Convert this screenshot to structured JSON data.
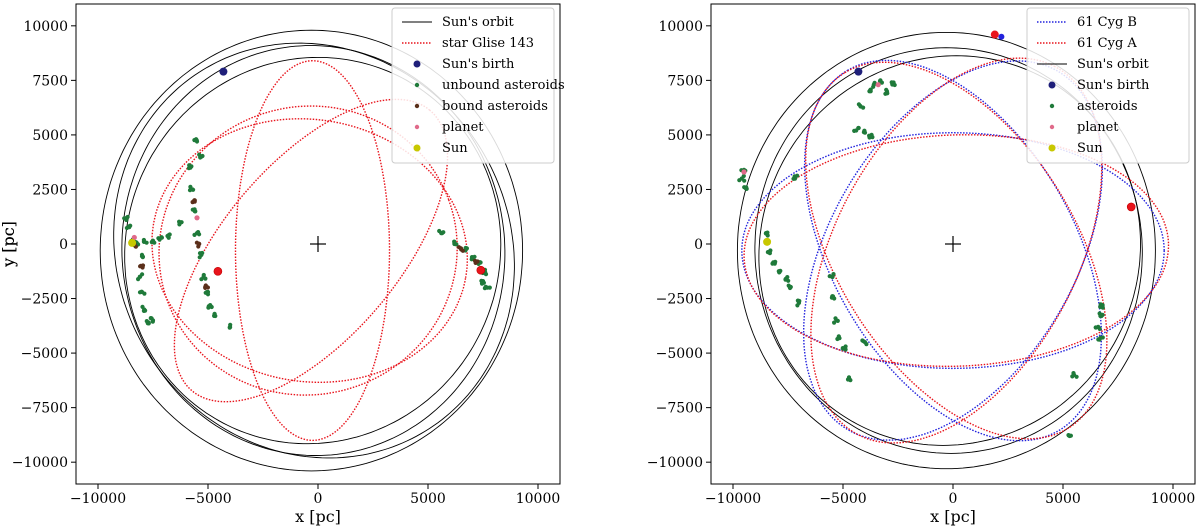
{
  "chart_data": [
    {
      "type": "scatter",
      "xlabel": "x [pc]",
      "ylabel": "y [pc]",
      "xlim": [
        -11000,
        11000
      ],
      "ylim": [
        -11000,
        11000
      ],
      "xticks": [
        -10000,
        -5000,
        0,
        5000,
        10000
      ],
      "yticks": [
        -10000,
        -7500,
        -5000,
        -2500,
        0,
        2500,
        5000,
        7500,
        10000
      ],
      "grid": false,
      "legend_position": "top-right",
      "center_marker": [
        0,
        0
      ],
      "legend": [
        {
          "label": "Sun's orbit",
          "style": "line",
          "color": "#000000"
        },
        {
          "label": "star Glise 143",
          "style": "dotted",
          "color": "#e8141c"
        },
        {
          "label": "Sun's birth",
          "style": "dot",
          "color": "#1f1f7a"
        },
        {
          "label": "unbound asteroids",
          "style": "dot-small",
          "color": "#1f7a3a"
        },
        {
          "label": "bound asteroids",
          "style": "dot-small",
          "color": "#5b2f1a"
        },
        {
          "label": "planet",
          "style": "dot-small",
          "color": "#e06a8a"
        },
        {
          "label": "Sun",
          "style": "dot",
          "color": "#c8c800"
        }
      ],
      "orbits": [
        {
          "label": "Sun's orbit",
          "color": "#000000",
          "dotted": false,
          "loops": [
            [
              -210,
              8700,
              9400,
              5
            ],
            [
              -240,
              8500,
              8900,
              -20
            ],
            [
              -180,
              8900,
              9700,
              30
            ],
            [
              -300,
              9600,
              10100,
              0
            ]
          ]
        },
        {
          "label": "star Glise 143",
          "color": "#e8141c",
          "dotted": true,
          "loops": [
            [
              -250,
              8700,
              3500,
              90
            ],
            [
              -320,
              8400,
              4000,
              50
            ],
            [
              -450,
              6800,
              6600,
              20
            ],
            [
              -380,
              7200,
              6000,
              -10
            ]
          ]
        }
      ],
      "markers": {
        "sun_birth": [
          [
            -4300,
            7900
          ]
        ],
        "sun": [
          [
            -8450,
            50
          ]
        ],
        "planet": [
          [
            -4550,
            -1250
          ],
          [
            7400,
            -1200
          ]
        ]
      },
      "clusters": [
        {
          "label": "unbound asteroids",
          "color": "#1f7a3a",
          "points": [
            [
              -8400,
              200
            ],
            [
              -8200,
              0
            ],
            [
              -8000,
              -500
            ],
            [
              -8100,
              -1500
            ],
            [
              -8000,
              -2200
            ],
            [
              -7900,
              -3000
            ],
            [
              -7700,
              -3600
            ],
            [
              -7500,
              -3500
            ],
            [
              -8600,
              800
            ],
            [
              -8700,
              1200
            ],
            [
              -7900,
              100
            ],
            [
              -7500,
              150
            ],
            [
              -7200,
              200
            ],
            [
              -6800,
              400
            ],
            [
              -5800,
              3500
            ],
            [
              -5700,
              2500
            ],
            [
              -5600,
              1500
            ],
            [
              -5500,
              500
            ],
            [
              -5300,
              -500
            ],
            [
              -5200,
              -1500
            ],
            [
              -5000,
              -2200
            ],
            [
              -4900,
              -2800
            ],
            [
              -4700,
              -3200
            ],
            [
              -5500,
              4700
            ],
            [
              -5300,
              4000
            ],
            [
              -6200,
              1000
            ],
            [
              -4000,
              -3800
            ],
            [
              5600,
              500
            ],
            [
              6200,
              0
            ],
            [
              6700,
              -300
            ],
            [
              7000,
              -600
            ],
            [
              7300,
              -900
            ],
            [
              7600,
              -1300
            ],
            [
              7500,
              -1700
            ],
            [
              7700,
              -2000
            ]
          ]
        },
        {
          "label": "bound asteroids",
          "color": "#5b2f1a",
          "points": [
            [
              -8300,
              -100
            ],
            [
              -8050,
              -1000
            ],
            [
              -5600,
              2000
            ],
            [
              -5400,
              0
            ],
            [
              -5100,
              -1900
            ],
            [
              6500,
              -200
            ],
            [
              7200,
              -800
            ]
          ]
        },
        {
          "label": "planet",
          "color": "#e06a8a",
          "points": [
            [
              -8350,
              300
            ],
            [
              -5500,
              1200
            ]
          ]
        },
        {
          "label": "Sun",
          "color": "#c8c800",
          "points": []
        }
      ]
    },
    {
      "type": "scatter",
      "xlabel": "x [pc]",
      "ylabel": "y [pc]",
      "xlim": [
        -11000,
        11000
      ],
      "ylim": [
        -11000,
        11000
      ],
      "xticks": [
        -10000,
        -5000,
        0,
        5000,
        10000
      ],
      "yticks": [
        -10000,
        -7500,
        -5000,
        -2500,
        0,
        2500,
        5000,
        7500,
        10000
      ],
      "grid": false,
      "legend_position": "top-right",
      "center_marker": [
        0,
        0
      ],
      "legend": [
        {
          "label": "61 Cyg B",
          "style": "dotted",
          "color": "#2222dd"
        },
        {
          "label": "61 Cyg A",
          "style": "dotted",
          "color": "#e8141c"
        },
        {
          "label": "Sun's orbit",
          "style": "line",
          "color": "#000000"
        },
        {
          "label": "Sun's birth",
          "style": "dot",
          "color": "#1f1f7a"
        },
        {
          "label": "asteroids",
          "style": "dot-small",
          "color": "#1f7a3a"
        },
        {
          "label": "planet",
          "style": "dot-small",
          "color": "#e06a8a"
        },
        {
          "label": "Sun",
          "style": "dot",
          "color": "#c8c800"
        }
      ],
      "orbits": [
        {
          "label": "Sun's orbit",
          "color": "#000000",
          "dotted": false,
          "loops": [
            [
              -200,
              8800,
              9300,
              5
            ],
            [
              -300,
              9500,
              10000,
              0
            ],
            [
              -150,
              8600,
              9000,
              -25
            ]
          ]
        },
        {
          "label": "61 Cyg B",
          "color": "#2222dd",
          "dotted": true,
          "loops": [
            [
              0,
              9600,
              5400,
              0
            ],
            [
              0,
              9500,
              5600,
              60
            ],
            [
              0,
              9550,
              5500,
              120
            ]
          ]
        },
        {
          "label": "61 Cyg A",
          "color": "#e8141c",
          "dotted": true,
          "loops": [
            [
              150,
              9650,
              5300,
              2
            ],
            [
              150,
              9550,
              5500,
              62
            ],
            [
              150,
              9600,
              5400,
              122
            ]
          ]
        }
      ],
      "markers": {
        "sun_birth": [
          [
            -4300,
            7900
          ]
        ],
        "sun": [
          [
            -8450,
            100
          ]
        ],
        "star_red": [
          [
            1900,
            9600
          ]
        ],
        "star_blue": [
          [
            2200,
            9500
          ]
        ],
        "planet": [
          [
            8100,
            1700
          ]
        ]
      },
      "clusters": [
        {
          "label": "asteroids",
          "color": "#1f7a3a",
          "points": [
            [
              -9500,
              3400
            ],
            [
              -9600,
              3000
            ],
            [
              -9400,
              2600
            ],
            [
              -8500,
              500
            ],
            [
              -8300,
              -300
            ],
            [
              -8100,
              -900
            ],
            [
              -7900,
              -1300
            ],
            [
              -7600,
              -1600
            ],
            [
              -7400,
              -2000
            ],
            [
              -7000,
              -2700
            ],
            [
              -5500,
              -1500
            ],
            [
              -5400,
              -2500
            ],
            [
              -5300,
              -3500
            ],
            [
              -5200,
              -4300
            ],
            [
              -5000,
              -4800
            ],
            [
              -4000,
              -4500
            ],
            [
              -4700,
              -6200
            ],
            [
              -3800,
              7000
            ],
            [
              -3600,
              7300
            ],
            [
              -3300,
              7500
            ],
            [
              -4200,
              6300
            ],
            [
              -4400,
              5200
            ],
            [
              -4000,
              5100
            ],
            [
              -3700,
              5000
            ],
            [
              -3000,
              7000
            ],
            [
              -2700,
              7400
            ],
            [
              6800,
              -2800
            ],
            [
              6700,
              -3300
            ],
            [
              6600,
              -3800
            ],
            [
              6700,
              -4300
            ],
            [
              5500,
              -6000
            ],
            [
              5300,
              -8800
            ],
            [
              -7200,
              3100
            ]
          ]
        },
        {
          "label": "planet",
          "color": "#e06a8a",
          "points": [
            [
              -9500,
              3300
            ],
            [
              -3400,
              7300
            ]
          ]
        }
      ]
    }
  ]
}
